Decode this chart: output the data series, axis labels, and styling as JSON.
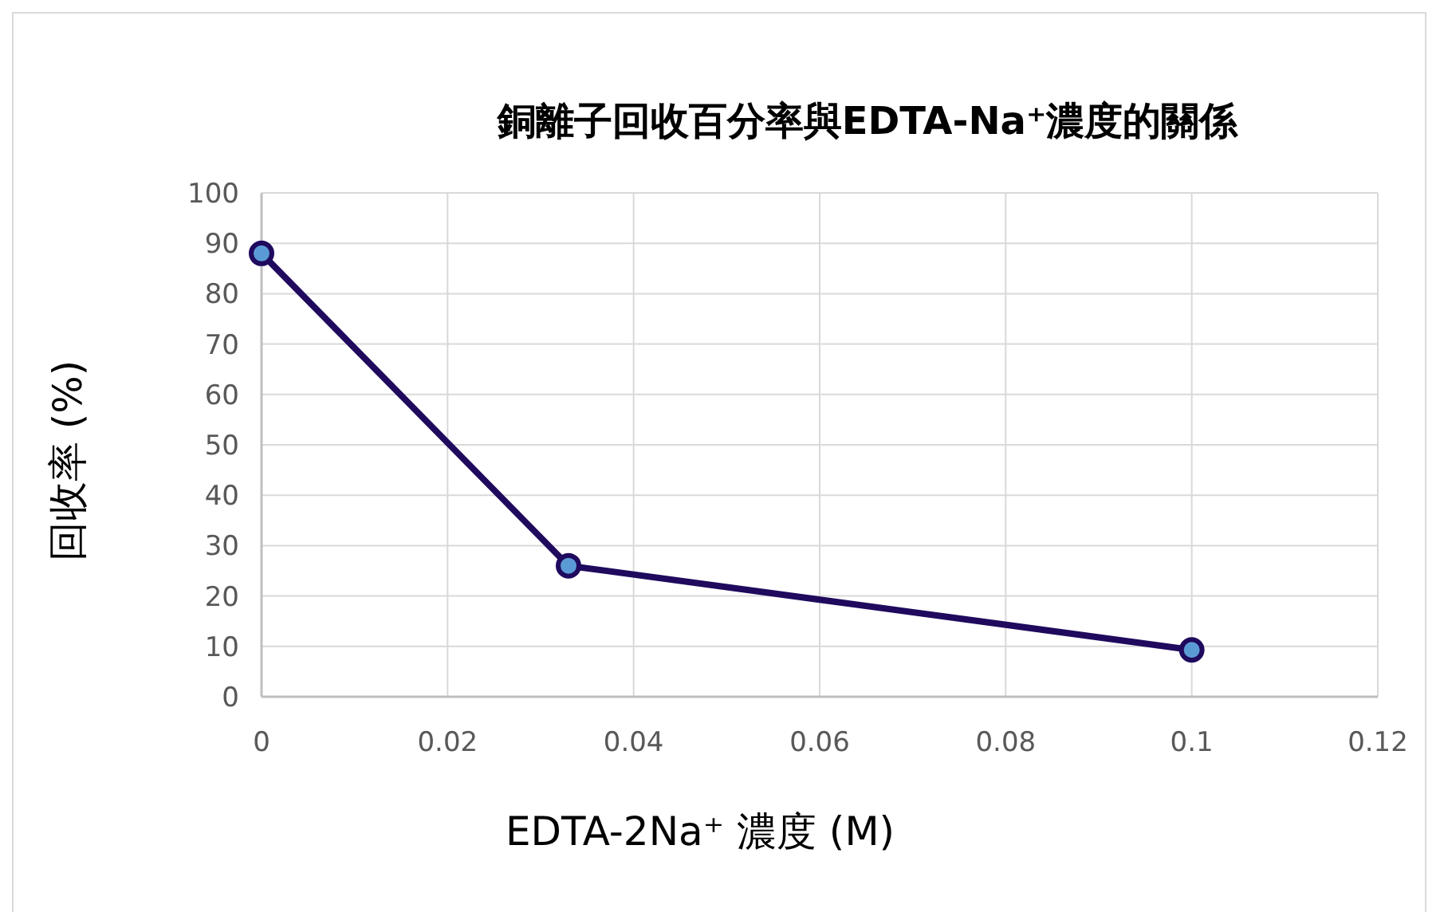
{
  "chart_data": {
    "type": "line",
    "title": "銅離子回收百分率與EDTA-Na⁺濃度的關係",
    "xlabel": "EDTA-2Na⁺ 濃度 (M)",
    "ylabel": "回收率 (%)",
    "x": [
      0,
      0.033,
      0.1
    ],
    "series": [
      {
        "color": "#1f0a5e",
        "values": [
          88,
          26,
          9.3
        ]
      }
    ],
    "xlim": [
      0,
      0.12
    ],
    "xticks": [
      0,
      0.02,
      0.04,
      0.06,
      0.08,
      0.1,
      0.12
    ],
    "ylim": [
      0,
      100
    ],
    "yticks": [
      0,
      10,
      20,
      30,
      40,
      50,
      60,
      70,
      80,
      90,
      100
    ],
    "grid": true,
    "marker": "circle",
    "line_style": "solid"
  }
}
